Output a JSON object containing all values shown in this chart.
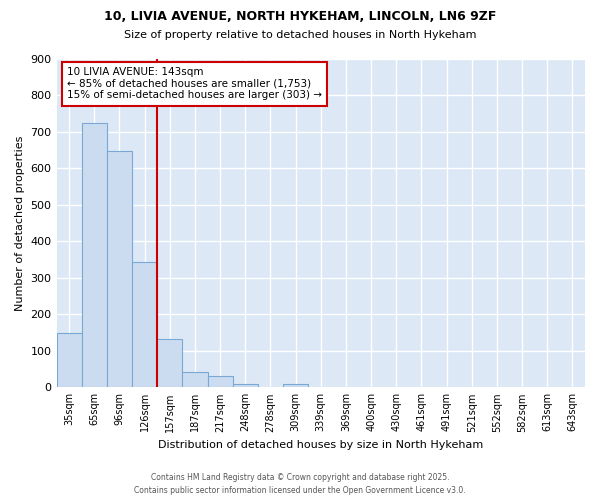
{
  "title1": "10, LIVIA AVENUE, NORTH HYKEHAM, LINCOLN, LN6 9ZF",
  "title2": "Size of property relative to detached houses in North Hykeham",
  "xlabel": "Distribution of detached houses by size in North Hykeham",
  "ylabel": "Number of detached properties",
  "categories": [
    "35sqm",
    "65sqm",
    "96sqm",
    "126sqm",
    "157sqm",
    "187sqm",
    "217sqm",
    "248sqm",
    "278sqm",
    "309sqm",
    "339sqm",
    "369sqm",
    "400sqm",
    "430sqm",
    "461sqm",
    "491sqm",
    "521sqm",
    "552sqm",
    "582sqm",
    "613sqm",
    "643sqm"
  ],
  "values": [
    150,
    725,
    648,
    343,
    133,
    42,
    30,
    10,
    0,
    8,
    0,
    0,
    0,
    0,
    0,
    0,
    0,
    0,
    0,
    0,
    0
  ],
  "bar_color": "#ccdcf0",
  "bar_edge_color": "#7aa8d4",
  "bar_edge_width": 0.8,
  "vline_color": "#cc0000",
  "annotation_title": "10 LIVIA AVENUE: 143sqm",
  "annotation_line1": "← 85% of detached houses are smaller (1,753)",
  "annotation_line2": "15% of semi-detached houses are larger (303) →",
  "annotation_box_color": "#cc0000",
  "annotation_bg": "#ffffff",
  "ylim": [
    0,
    900
  ],
  "plot_bg_color": "#dce8f5",
  "fig_bg_color": "#ffffff",
  "grid_color": "#ffffff",
  "footer": "Contains HM Land Registry data © Crown copyright and database right 2025.\nContains public sector information licensed under the Open Government Licence v3.0."
}
